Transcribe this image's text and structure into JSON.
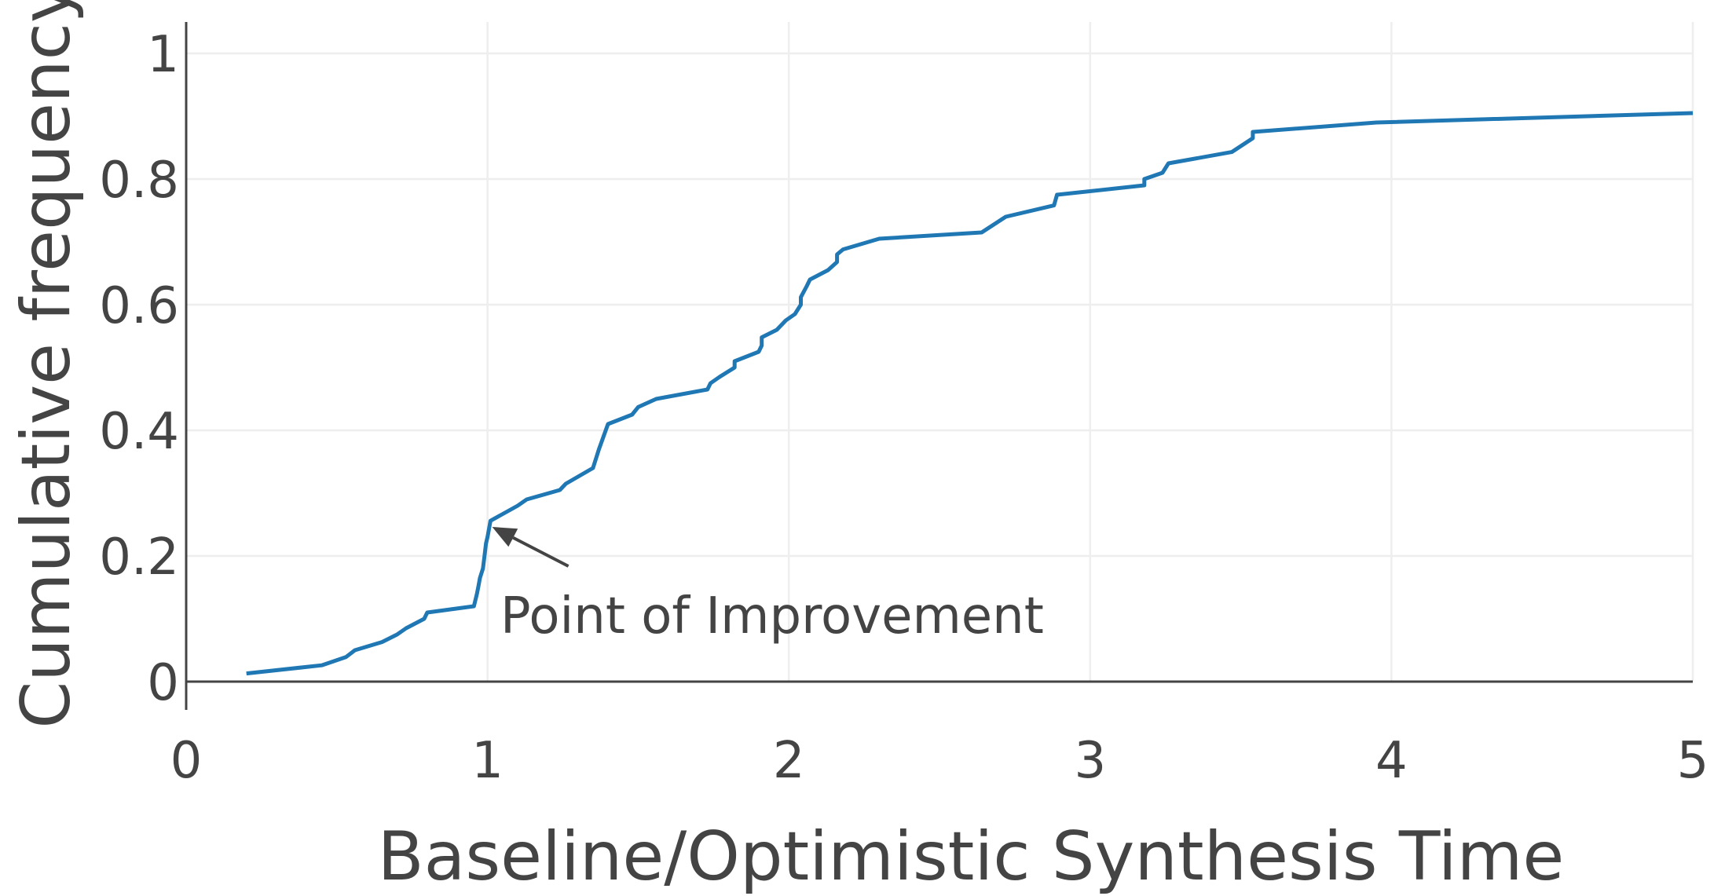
{
  "chart_data": {
    "type": "line",
    "title": "",
    "xlabel": "Baseline/Optimistic Synthesis Time",
    "ylabel": "Cumulative frequency",
    "xlim": [
      0,
      5
    ],
    "ylim": [
      0,
      1
    ],
    "grid": true,
    "x_ticks": [
      0,
      1,
      2,
      3,
      4,
      5
    ],
    "x_tick_labels": [
      "0",
      "1",
      "2",
      "3",
      "4",
      "5"
    ],
    "y_ticks": [
      0,
      0.2,
      0.4,
      0.6,
      0.8,
      1
    ],
    "y_tick_labels": [
      "0",
      "0.2",
      "0.4",
      "0.6",
      "0.8",
      "1"
    ],
    "line_color": "#1f77b4",
    "series": [
      {
        "x": [
          0.2,
          0.45,
          0.53,
          0.56,
          0.65,
          0.7,
          0.73,
          0.79,
          0.8,
          0.955,
          0.965,
          0.97,
          0.975,
          0.985,
          0.99,
          0.995,
          1.0,
          1.005,
          1.01,
          1.1,
          1.13,
          1.24,
          1.26,
          1.35,
          1.36,
          1.37,
          1.4,
          1.48,
          1.5,
          1.56,
          1.73,
          1.74,
          1.77,
          1.82,
          1.82,
          1.9,
          1.91,
          1.91,
          1.96,
          1.99,
          2.02,
          2.04,
          2.04,
          2.06,
          2.07,
          2.13,
          2.16,
          2.16,
          2.18,
          2.3,
          2.64,
          2.72,
          2.88,
          2.89,
          3.18,
          3.18,
          3.24,
          3.26,
          3.47,
          3.54,
          3.54,
          3.95,
          5.0
        ],
        "y": [
          0.013,
          0.026,
          0.039,
          0.05,
          0.063,
          0.075,
          0.085,
          0.1,
          0.11,
          0.12,
          0.14,
          0.152,
          0.165,
          0.18,
          0.2,
          0.22,
          0.23,
          0.243,
          0.256,
          0.28,
          0.29,
          0.305,
          0.315,
          0.34,
          0.355,
          0.37,
          0.41,
          0.425,
          0.437,
          0.45,
          0.465,
          0.475,
          0.485,
          0.5,
          0.51,
          0.525,
          0.535,
          0.548,
          0.56,
          0.575,
          0.585,
          0.6,
          0.612,
          0.63,
          0.64,
          0.655,
          0.668,
          0.68,
          0.688,
          0.705,
          0.715,
          0.74,
          0.758,
          0.775,
          0.79,
          0.8,
          0.81,
          0.825,
          0.843,
          0.865,
          0.875,
          0.89,
          0.905
        ]
      }
    ],
    "annotation": {
      "text": "Point of Improvement",
      "arrow_x": 1.0,
      "arrow_y": 0.245
    }
  }
}
